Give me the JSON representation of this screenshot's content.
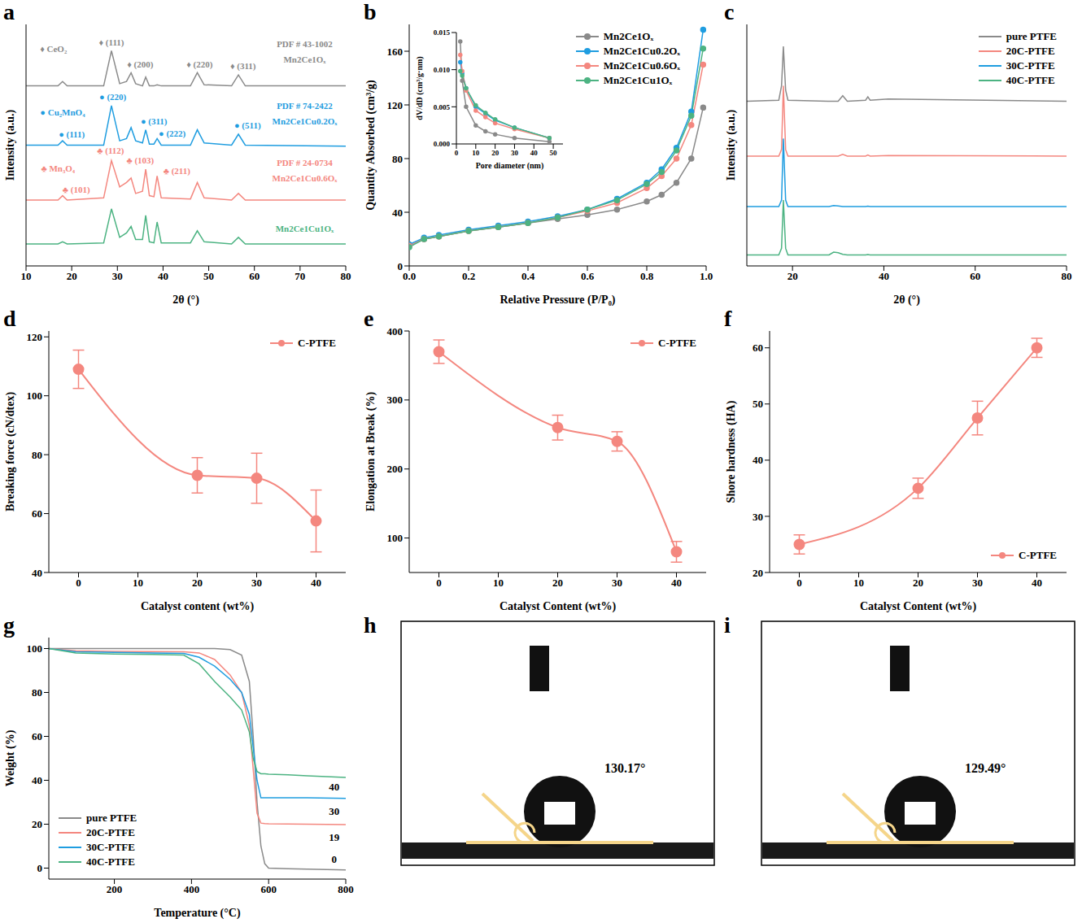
{
  "chart_data": [
    {
      "panel": "a",
      "type": "line",
      "x_label": "2θ (°)",
      "y_label": "Intensity (a.u.)",
      "xlim": [
        10,
        80
      ],
      "xticks": [
        10,
        20,
        30,
        40,
        50,
        60,
        70,
        80
      ],
      "ylim": [
        0,
        110
      ],
      "tick_labels": "x",
      "x": [
        10,
        17,
        18,
        19,
        27,
        28.7,
        30.5,
        32,
        33,
        34,
        35.5,
        36.2,
        37,
        38,
        38.7,
        39.6,
        46,
        47.5,
        49,
        55,
        56.5,
        58,
        80
      ],
      "series": [
        {
          "color": "#8a8a8a",
          "values": [
            82,
            82,
            84,
            82,
            82,
            98,
            83,
            84,
            88,
            83,
            82,
            86,
            82,
            82,
            82.5,
            82,
            82,
            88,
            82.5,
            82,
            87,
            82,
            82
          ]
        },
        {
          "color": "#1f9de0",
          "values": [
            55,
            55,
            57,
            55,
            55,
            73,
            57,
            58,
            63,
            57,
            56,
            62,
            55.5,
            55.5,
            58,
            55,
            55,
            62,
            56,
            55,
            60,
            55,
            54.5
          ]
        },
        {
          "color": "#f4877f",
          "values": [
            30,
            30,
            32,
            30,
            31,
            48,
            36,
            38,
            40,
            33,
            34,
            44,
            32,
            31.5,
            41,
            31,
            30.5,
            38,
            31,
            30,
            33,
            30,
            30
          ]
        },
        {
          "color": "#4cb382",
          "values": [
            10,
            10,
            11,
            10,
            10.5,
            26,
            13,
            15,
            18,
            12,
            12,
            23,
            11,
            10.5,
            20,
            10.5,
            10.5,
            16,
            11,
            10,
            13,
            10,
            10
          ]
        }
      ],
      "annotations": [
        {
          "text": "♦ CeO₂",
          "x": 16,
          "y": 99,
          "color": "#8a8a8a"
        },
        {
          "text": "♦ (111)",
          "x": 28.7,
          "y": 102,
          "color": "#8a8a8a"
        },
        {
          "text": "♦ (200)",
          "x": 35,
          "y": 92,
          "color": "#8a8a8a"
        },
        {
          "text": "♦ (220)",
          "x": 48,
          "y": 92,
          "color": "#8a8a8a"
        },
        {
          "text": "♦ (311)",
          "x": 57.5,
          "y": 91,
          "color": "#8a8a8a"
        },
        {
          "text": "PDF # 43-1002",
          "x": 71,
          "y": 101,
          "color": "#8a8a8a"
        },
        {
          "text": "Mn2Ce1Oₓ",
          "x": 71,
          "y": 94,
          "color": "#8a8a8a"
        },
        {
          "text": "● Cu₂MnO₄",
          "x": 18,
          "y": 70,
          "color": "#1f9de0"
        },
        {
          "text": "● (111)",
          "x": 20,
          "y": 60,
          "color": "#1f9de0"
        },
        {
          "text": "● (220)",
          "x": 29,
          "y": 77,
          "color": "#1f9de0"
        },
        {
          "text": "● (311)",
          "x": 38,
          "y": 66,
          "color": "#1f9de0"
        },
        {
          "text": "● (222)",
          "x": 42,
          "y": 60.5,
          "color": "#1f9de0"
        },
        {
          "text": "● (511)",
          "x": 58.5,
          "y": 64,
          "color": "#1f9de0"
        },
        {
          "text": "PDF # 74-2422",
          "x": 71,
          "y": 73,
          "color": "#1f9de0"
        },
        {
          "text": "Mn2Ce1Cu0.2Oₓ",
          "x": 71,
          "y": 66,
          "color": "#1f9de0"
        },
        {
          "text": "♣ Mn₃O₄",
          "x": 17,
          "y": 44.5,
          "color": "#f4877f"
        },
        {
          "text": "♣ (101)",
          "x": 21,
          "y": 35,
          "color": "#f4877f"
        },
        {
          "text": "♣ (112)",
          "x": 28.5,
          "y": 52.5,
          "color": "#f4877f"
        },
        {
          "text": "♣ (103)",
          "x": 35,
          "y": 48,
          "color": "#f4877f"
        },
        {
          "text": "♣ (211)",
          "x": 43,
          "y": 43.5,
          "color": "#f4877f"
        },
        {
          "text": "PDF # 24-0734",
          "x": 71,
          "y": 47,
          "color": "#f4877f"
        },
        {
          "text": "Mn2Ce1Cu0.6Oₓ",
          "x": 71,
          "y": 40,
          "color": "#f4877f"
        },
        {
          "text": "Mn2Ce1Cu1Oₓ",
          "x": 71,
          "y": 17,
          "color": "#4cb382"
        }
      ]
    },
    {
      "panel": "b",
      "type": "line",
      "x_label": "Relative Pressure (P/P₀)",
      "y_label": "Quantity Absorbed (cm³/g)",
      "xlim": [
        0,
        1
      ],
      "xticks": [
        {
          "value": 0,
          "label": "0.0"
        },
        0.2,
        0.4,
        0.6,
        0.8,
        {
          "value": 1,
          "label": "1.0"
        }
      ],
      "ylim": [
        0,
        180
      ],
      "yticks": [
        0,
        40,
        80,
        120,
        160
      ],
      "legend": "upper right",
      "x": [
        0,
        0.05,
        0.1,
        0.2,
        0.3,
        0.4,
        0.5,
        0.6,
        0.7,
        0.8,
        0.85,
        0.9,
        0.95,
        0.99
      ],
      "series": [
        {
          "name": "Mn2Ce1Oₓ",
          "color": "#8a8a8a",
          "marker": "circle",
          "values": [
            15,
            20,
            22,
            26,
            29,
            32,
            35,
            38,
            42,
            48,
            53,
            62,
            80,
            118
          ]
        },
        {
          "name": "Mn2Ce1Cu0.2Oₓ",
          "color": "#1f9de0",
          "marker": "circle",
          "values": [
            16,
            21,
            23,
            27,
            30,
            33,
            37,
            42,
            50,
            62,
            72,
            88,
            115,
            176
          ]
        },
        {
          "name": "Mn2Ce1Cu0.6Oₓ",
          "color": "#f4877f",
          "marker": "circle",
          "values": [
            15,
            20,
            22,
            26,
            29,
            32,
            36,
            41,
            47,
            58,
            67,
            80,
            105,
            150
          ]
        },
        {
          "name": "Mn2Ce1Cu1Oₓ",
          "color": "#4cb382",
          "marker": "circle",
          "values": [
            14,
            20,
            22,
            26,
            29,
            32,
            36,
            42,
            49,
            61,
            70,
            86,
            112,
            162
          ]
        }
      ],
      "inset": {
        "type": "line",
        "x_label": "Pore diameter (nm)",
        "y_label": "dV/dD (cm³/g·nm)",
        "xlim": [
          0,
          55
        ],
        "xticks": [
          0,
          10,
          20,
          30,
          40,
          50
        ],
        "ylim": [
          0,
          0.015
        ],
        "yticks": [
          {
            "value": 0,
            "label": "0.000"
          },
          0.005,
          {
            "value": 0.01,
            "label": "0.010"
          },
          0.015
        ],
        "x": [
          2,
          3,
          5,
          10,
          15,
          20,
          30,
          48
        ],
        "series": [
          {
            "color": "#8a8a8a",
            "marker": "circle",
            "values": [
              0.0138,
              0.0085,
              0.005,
              0.0025,
              0.0017,
              0.0013,
              0.0008,
              0.0003
            ]
          },
          {
            "color": "#1f9de0",
            "marker": "circle",
            "values": [
              0.011,
              0.0095,
              0.0075,
              0.005,
              0.0041,
              0.0032,
              0.0022,
              0.0008
            ]
          },
          {
            "color": "#f4877f",
            "marker": "circle",
            "values": [
              0.012,
              0.0098,
              0.0072,
              0.0045,
              0.0036,
              0.0028,
              0.002,
              0.0008
            ]
          },
          {
            "color": "#4cb382",
            "marker": "circle",
            "values": [
              0.0098,
              0.0092,
              0.0075,
              0.0052,
              0.0042,
              0.0033,
              0.0022,
              0.0008
            ]
          }
        ]
      }
    },
    {
      "panel": "c",
      "type": "line",
      "x_label": "2θ (°)",
      "y_label": "Intensity (a.u.)",
      "xlim": [
        10,
        80
      ],
      "xticks": [
        20,
        40,
        60,
        80
      ],
      "ylim": [
        0,
        110
      ],
      "tick_labels": "x",
      "legend": "upper right",
      "x": [
        10,
        17,
        17.6,
        18,
        18.5,
        19,
        28,
        29,
        30,
        31,
        32,
        36,
        36.5,
        37,
        41,
        80
      ],
      "series": [
        {
          "name": "pure PTFE",
          "color": "#8a8a8a",
          "values": [
            75,
            75.5,
            82,
            100,
            80,
            75.5,
            75,
            75,
            75,
            77.5,
            75,
            75.5,
            77,
            75.5,
            76,
            75
          ]
        },
        {
          "name": "20C-PTFE",
          "color": "#f4877f",
          "values": [
            50,
            50,
            53,
            82,
            53,
            50,
            50,
            50,
            50,
            50.8,
            50,
            50,
            50.5,
            50,
            50.3,
            50
          ]
        },
        {
          "name": "30C-PTFE",
          "color": "#1f9de0",
          "values": [
            27,
            27,
            30,
            58,
            30,
            27,
            27,
            27.5,
            27.3,
            27,
            27,
            27,
            27.2,
            27,
            27,
            27
          ]
        },
        {
          "name": "40C-PTFE",
          "color": "#4cb382",
          "values": [
            5,
            5,
            8,
            30,
            8,
            5,
            5,
            6.3,
            6,
            5.3,
            5,
            5,
            5.2,
            5,
            5,
            5
          ]
        }
      ]
    },
    {
      "panel": "d",
      "type": "line",
      "x_label": "Catalyst content  (wt%)",
      "y_label": "Breaking force (cN/dtex)",
      "xlim": [
        -5,
        45
      ],
      "xticks": [
        0,
        10,
        20,
        30,
        40
      ],
      "ylim": [
        40,
        122
      ],
      "yticks": [
        40,
        60,
        80,
        100,
        120
      ],
      "legend": "upper right",
      "x": [
        0,
        20,
        30,
        40
      ],
      "series": [
        {
          "name": "C-PTFE",
          "color": "#f4877f",
          "marker": "circle",
          "values": [
            109,
            73,
            72,
            57.5
          ],
          "errors": [
            6.5,
            6,
            8.5,
            10.5
          ]
        }
      ]
    },
    {
      "panel": "e",
      "type": "line",
      "x_label": "Catalyst Content  (wt%)",
      "y_label": "Elongation at Break (%)",
      "xlim": [
        -5,
        45
      ],
      "xticks": [
        0,
        10,
        20,
        30,
        40
      ],
      "ylim": [
        50,
        400
      ],
      "yticks": [
        100,
        200,
        300,
        400
      ],
      "legend": "upper right",
      "x": [
        0,
        20,
        30,
        40
      ],
      "series": [
        {
          "name": "C-PTFE",
          "color": "#f4877f",
          "marker": "circle",
          "values": [
            370,
            260,
            240,
            80
          ],
          "errors": [
            17,
            18,
            14,
            15
          ]
        }
      ]
    },
    {
      "panel": "f",
      "type": "line",
      "x_label": "Catalyst Content  (wt%)",
      "y_label": "Shore hardness (HA)",
      "xlim": [
        -5,
        45
      ],
      "xticks": [
        0,
        10,
        20,
        30,
        40
      ],
      "ylim": [
        20,
        63
      ],
      "yticks": [
        20,
        30,
        40,
        50,
        60
      ],
      "legend": "lower right",
      "x": [
        0,
        20,
        30,
        40
      ],
      "series": [
        {
          "name": "C-PTFE",
          "color": "#f4877f",
          "marker": "circle",
          "values": [
            25,
            35,
            47.5,
            60
          ],
          "errors": [
            1.7,
            1.8,
            3,
            1.7
          ]
        }
      ]
    },
    {
      "panel": "g",
      "type": "line",
      "x_label": "Temperature (°C)",
      "y_label": "Weight (%)",
      "xlim": [
        30,
        800
      ],
      "xticks": [
        200,
        400,
        600,
        800
      ],
      "ylim": [
        -5,
        105
      ],
      "yticks": [
        0,
        20,
        40,
        60,
        80,
        100
      ],
      "legend": "lower left",
      "x": [
        30,
        100,
        200,
        300,
        380,
        420,
        460,
        500,
        530,
        550,
        560,
        570,
        580,
        590,
        600,
        650,
        700,
        800
      ],
      "series": [
        {
          "name": "pure PTFE",
          "color": "#8a8a8a",
          "values": [
            100,
            100,
            100,
            100,
            100,
            100,
            100,
            99.5,
            97,
            85,
            60,
            30,
            10,
            2,
            0,
            -0.3,
            -0.5,
            -0.8
          ]
        },
        {
          "name": "20C-PTFE",
          "color": "#f4877f",
          "values": [
            100,
            99,
            98.7,
            98.6,
            98.5,
            98,
            95,
            88,
            80,
            65,
            45,
            25,
            20.5,
            20.3,
            20.2,
            20.1,
            20,
            19.8
          ]
        },
        {
          "name": "30C-PTFE",
          "color": "#1f9de0",
          "values": [
            100,
            98.5,
            98.2,
            98,
            97.8,
            96,
            92,
            86,
            80,
            70,
            55,
            40,
            32,
            32,
            32,
            32,
            32,
            31.8
          ]
        },
        {
          "name": "40C-PTFE",
          "color": "#4cb382",
          "values": [
            100,
            98,
            97.5,
            97.3,
            97,
            93,
            85,
            78,
            72,
            62,
            50,
            44,
            43,
            43,
            42.8,
            42.5,
            42,
            41.3
          ]
        }
      ],
      "annotations": [
        {
          "text": "40",
          "x": 770,
          "y": 37
        },
        {
          "text": "30",
          "x": 770,
          "y": 26
        },
        {
          "text": "19",
          "x": 770,
          "y": 14
        },
        {
          "text": "0",
          "x": 770,
          "y": 4
        }
      ]
    },
    {
      "panel": "h",
      "type": "image",
      "annotation": "130.17°"
    },
    {
      "panel": "i",
      "type": "image",
      "annotation": "129.49°"
    }
  ]
}
